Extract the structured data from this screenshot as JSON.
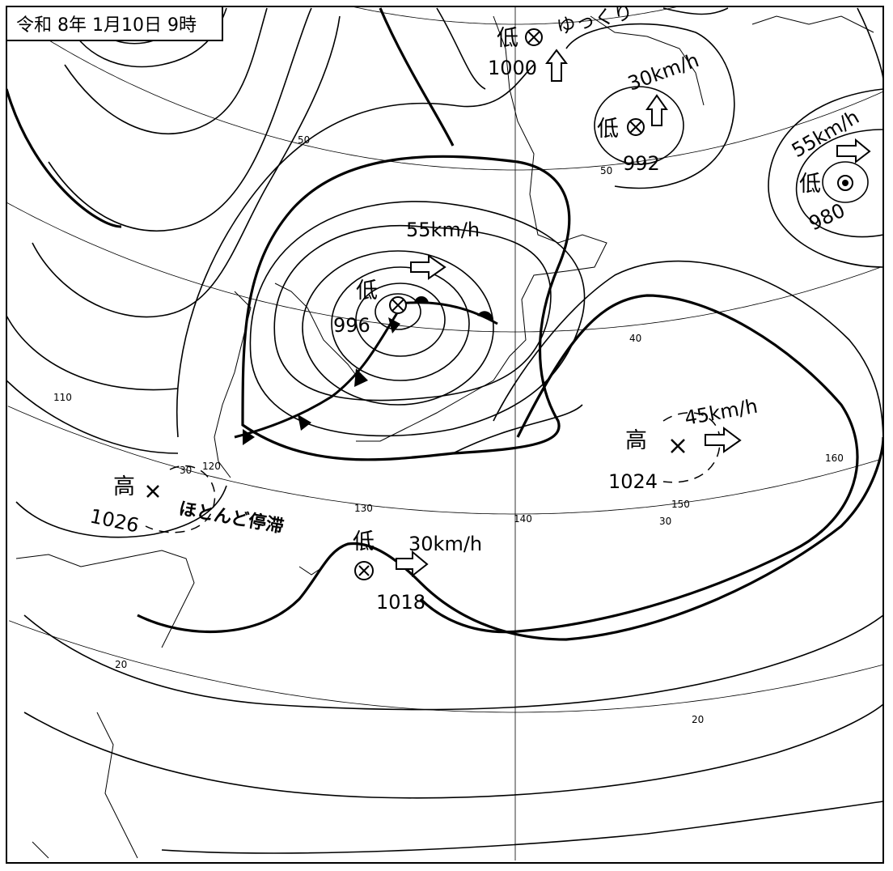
{
  "title": "令和 8年 1月10日 9時",
  "colors": {
    "background": "#ffffff",
    "ink": "#000000"
  },
  "latitude_labels": [
    "50",
    "50",
    "40",
    "30",
    "30",
    "20",
    "20"
  ],
  "longitude_labels": [
    "110",
    "120",
    "130",
    "140",
    "150",
    "160"
  ],
  "systems": [
    {
      "type": "低",
      "pressure": "1000",
      "motion": "ゆっくり",
      "arrow": "arrow-up-icon"
    },
    {
      "type": "低",
      "pressure": "992",
      "motion": "30km/h",
      "arrow": "arrow-up-icon"
    },
    {
      "type": "低",
      "pressure": "980",
      "motion": "55km/h",
      "arrow": "arrow-right-icon"
    },
    {
      "type": "低",
      "pressure": "996",
      "motion": "55km/h",
      "arrow": "arrow-right-icon"
    },
    {
      "type": "高",
      "pressure": "1024",
      "motion": "45km/h",
      "arrow": "arrow-right-icon"
    },
    {
      "type": "高",
      "pressure": "1026",
      "motion": "ほとんど停滞"
    },
    {
      "type": "低",
      "pressure": "1018",
      "motion": "30km/h",
      "arrow": "arrow-right-icon"
    }
  ]
}
